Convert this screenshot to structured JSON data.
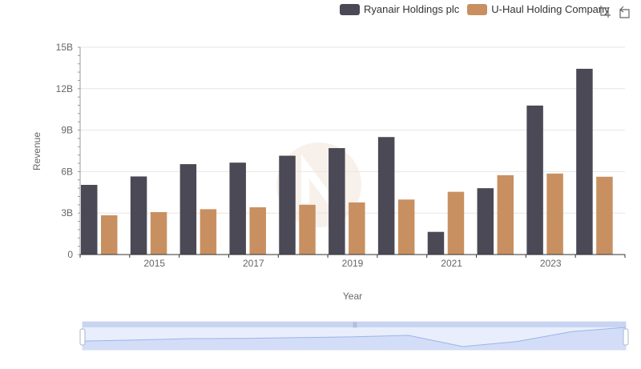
{
  "legend": {
    "items": [
      {
        "label": "Ryanair Holdings plc",
        "color": "#4a4955"
      },
      {
        "label": "U-Haul Holding Company",
        "color": "#c89060"
      }
    ]
  },
  "toolbox": {
    "zoom_icon": "zoom-icon",
    "restore_icon": "restore-icon"
  },
  "chart_data": {
    "type": "bar",
    "title": "",
    "xlabel": "Year",
    "ylabel": "Revenue",
    "categories": [
      "2014",
      "2015",
      "2016",
      "2017",
      "2018",
      "2019",
      "2020",
      "2021",
      "2022",
      "2023",
      "2024"
    ],
    "x_tick_labels": [
      "2015",
      "2017",
      "2019",
      "2021",
      "2023"
    ],
    "y_ticks": [
      0,
      3,
      6,
      9,
      12,
      15
    ],
    "y_tick_labels": [
      "0",
      "3B",
      "6B",
      "9B",
      "12B",
      "15B"
    ],
    "ylim": [
      0,
      15
    ],
    "y_unit": "billions",
    "series": [
      {
        "name": "Ryanair Holdings plc",
        "color": "#4a4955",
        "values": [
          5.04,
          5.65,
          6.54,
          6.65,
          7.15,
          7.7,
          8.5,
          1.64,
          4.8,
          10.78,
          13.44
        ]
      },
      {
        "name": "U-Haul Holding Company",
        "color": "#c89060",
        "values": [
          2.84,
          3.07,
          3.28,
          3.42,
          3.6,
          3.77,
          3.98,
          4.54,
          5.74,
          5.86,
          5.63
        ]
      }
    ],
    "zoom_slider": {
      "start": 0,
      "end": 100
    }
  }
}
